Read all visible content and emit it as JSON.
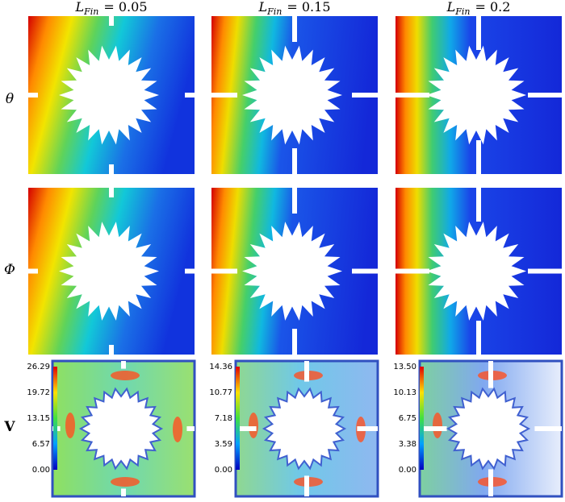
{
  "columns": [
    {
      "symbol": "L",
      "subscript": "Fin",
      "equals": "= 0.05",
      "colorbar": [
        "26.29",
        "19.72",
        "13.15",
        "6.57",
        "0.00"
      ]
    },
    {
      "symbol": "L",
      "subscript": "Fin",
      "equals": "= 0.15",
      "colorbar": [
        "14.36",
        "10.77",
        "7.18",
        "3.59",
        "0.00"
      ]
    },
    {
      "symbol": "L",
      "subscript": "Fin",
      "equals": "= 0.2",
      "colorbar": [
        "13.50",
        "10.13",
        "6.75",
        "3.38",
        "0.00"
      ]
    }
  ],
  "rows": [
    "θ",
    "Φ",
    "V"
  ]
}
